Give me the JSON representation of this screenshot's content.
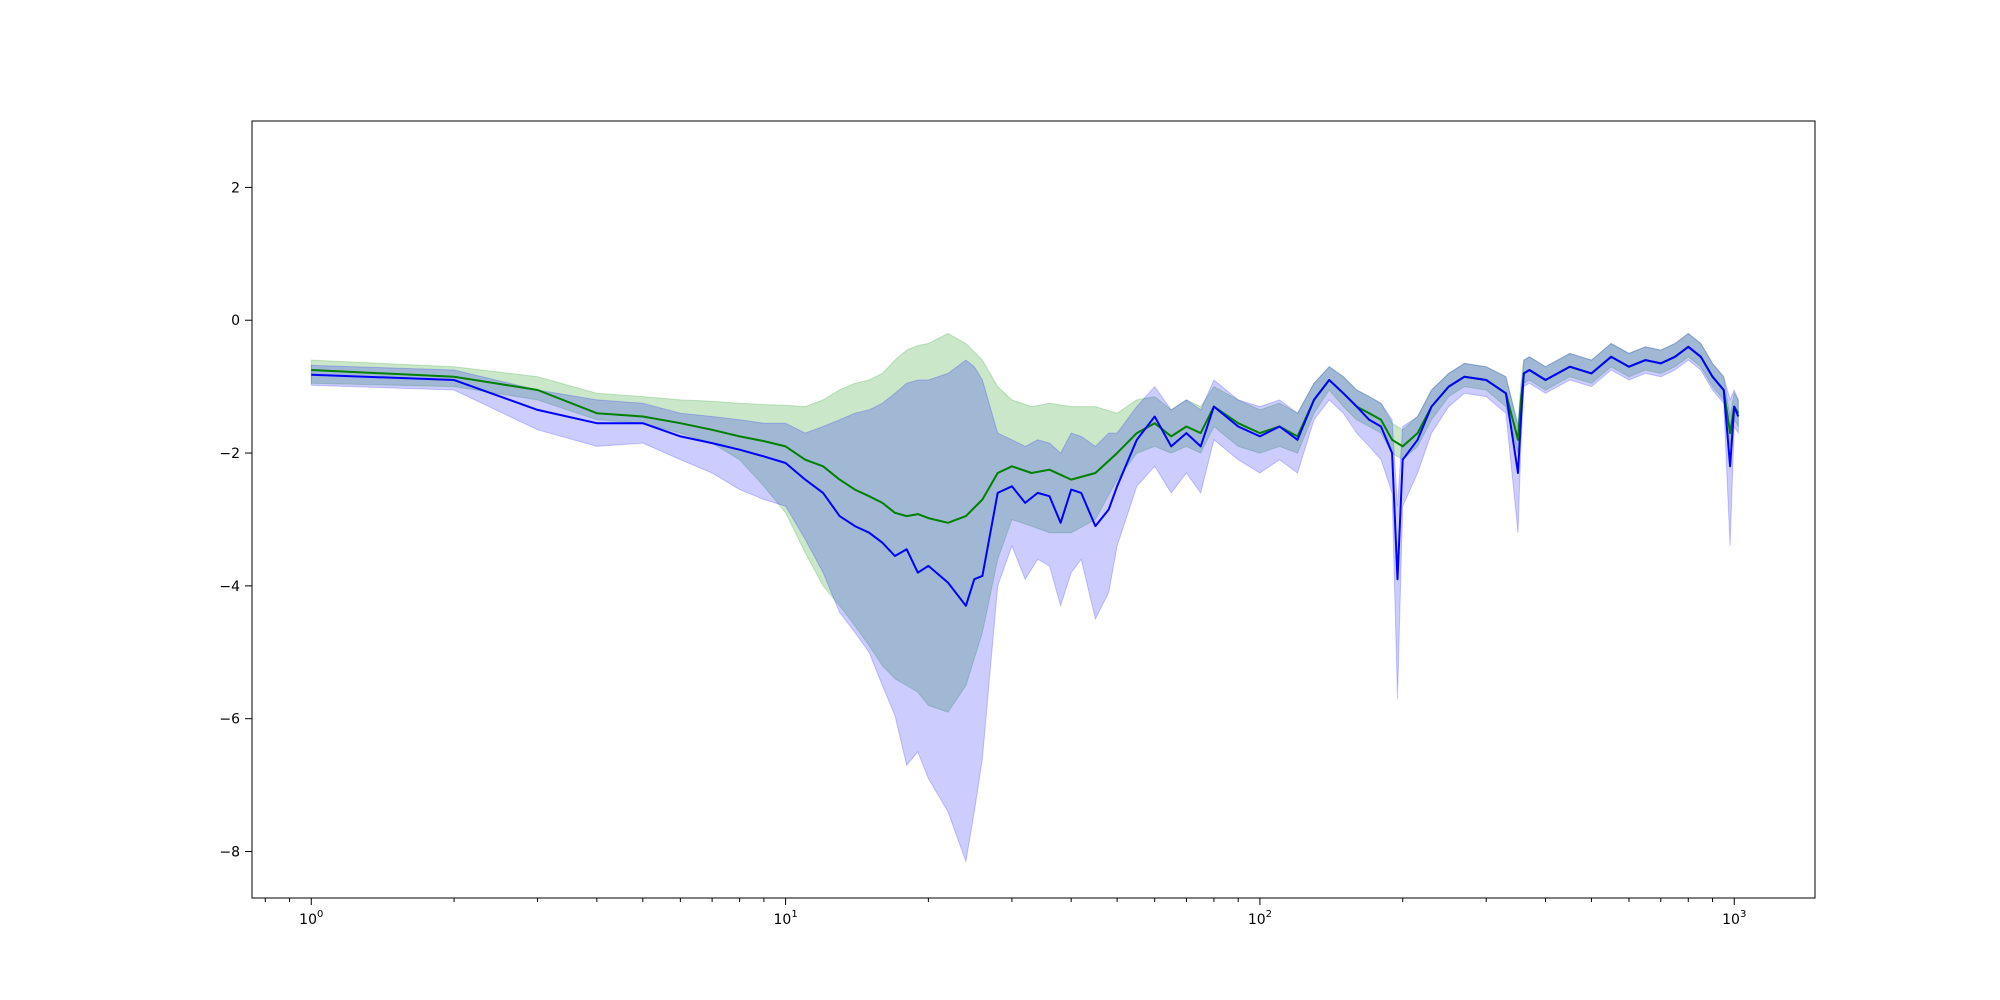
{
  "chart_data": {
    "type": "line",
    "x_scale": "log",
    "xlim": [
      0.75,
      1480
    ],
    "ylim": [
      -8.7,
      3.0
    ],
    "x_ticks": [
      1,
      10,
      100,
      1000
    ],
    "x_tick_labels": [
      {
        "base": "10",
        "exp": "0"
      },
      {
        "base": "10",
        "exp": "1"
      },
      {
        "base": "10",
        "exp": "2"
      },
      {
        "base": "10",
        "exp": "3"
      }
    ],
    "y_ticks": [
      2,
      0,
      -2,
      -4,
      -6,
      -8
    ],
    "y_tick_labels": [
      "2",
      "0",
      "−2",
      "−4",
      "−6",
      "−8"
    ],
    "grid": false,
    "legend": "none",
    "series": [
      {
        "color": "#008000",
        "band_color": "#2ca02c",
        "band_opacity": 0.25,
        "x": [
          1,
          2,
          3,
          4,
          5,
          6,
          7,
          8,
          9,
          10,
          11,
          12,
          13,
          14,
          15,
          16,
          17,
          18,
          19,
          20,
          22,
          24,
          26,
          28,
          30,
          33,
          36,
          40,
          45,
          50,
          55,
          60,
          65,
          70,
          75,
          80,
          90,
          100,
          110,
          120,
          130,
          140,
          150,
          160,
          170,
          180,
          190,
          200,
          215,
          230,
          250,
          270,
          300,
          330,
          350,
          355,
          360,
          370,
          400,
          450,
          500,
          550,
          600,
          650,
          700,
          750,
          800,
          850,
          900,
          950,
          980,
          1000,
          1020
        ],
        "y": [
          -0.75,
          -0.85,
          -1.05,
          -1.4,
          -1.45,
          -1.55,
          -1.65,
          -1.75,
          -1.82,
          -1.9,
          -2.1,
          -2.2,
          -2.4,
          -2.55,
          -2.65,
          -2.75,
          -2.9,
          -2.95,
          -2.92,
          -2.98,
          -3.05,
          -2.95,
          -2.7,
          -2.3,
          -2.2,
          -2.3,
          -2.25,
          -2.4,
          -2.3,
          -2.0,
          -1.7,
          -1.55,
          -1.75,
          -1.6,
          -1.7,
          -1.3,
          -1.55,
          -1.7,
          -1.6,
          -1.75,
          -1.2,
          -0.9,
          -1.1,
          -1.3,
          -1.4,
          -1.5,
          -1.8,
          -1.9,
          -1.7,
          -1.3,
          -1.0,
          -0.85,
          -0.9,
          -1.1,
          -1.8,
          -1.2,
          -0.8,
          -0.75,
          -0.9,
          -0.7,
          -0.8,
          -0.55,
          -0.7,
          -0.6,
          -0.65,
          -0.55,
          -0.4,
          -0.55,
          -0.85,
          -1.05,
          -1.7,
          -1.3,
          -1.4
        ],
        "lower": [
          -0.95,
          -1.0,
          -1.2,
          -1.5,
          -1.55,
          -1.7,
          -1.85,
          -2.1,
          -2.5,
          -2.9,
          -3.5,
          -4.0,
          -4.3,
          -4.6,
          -4.9,
          -5.2,
          -5.4,
          -5.5,
          -5.6,
          -5.8,
          -5.9,
          -5.5,
          -4.7,
          -3.6,
          -3.0,
          -3.1,
          -3.2,
          -3.2,
          -3.0,
          -2.4,
          -2.0,
          -1.9,
          -2.0,
          -1.9,
          -2.0,
          -1.6,
          -1.9,
          -2.0,
          -1.9,
          -2.0,
          -1.4,
          -1.05,
          -1.3,
          -1.5,
          -1.6,
          -1.7,
          -2.0,
          -2.1,
          -1.9,
          -1.5,
          -1.15,
          -1.0,
          -1.05,
          -1.3,
          -2.0,
          -1.4,
          -0.95,
          -0.9,
          -1.05,
          -0.85,
          -0.95,
          -0.7,
          -0.85,
          -0.75,
          -0.8,
          -0.7,
          -0.55,
          -0.7,
          -1.0,
          -1.2,
          -1.9,
          -1.5,
          -1.6
        ],
        "upper": [
          -0.6,
          -0.7,
          -0.85,
          -1.1,
          -1.15,
          -1.2,
          -1.22,
          -1.25,
          -1.27,
          -1.28,
          -1.3,
          -1.2,
          -1.05,
          -0.95,
          -0.9,
          -0.8,
          -0.6,
          -0.45,
          -0.38,
          -0.35,
          -0.2,
          -0.35,
          -0.6,
          -1.0,
          -1.2,
          -1.3,
          -1.25,
          -1.3,
          -1.3,
          -1.4,
          -1.2,
          -1.15,
          -1.35,
          -1.2,
          -1.3,
          -1.0,
          -1.2,
          -1.35,
          -1.25,
          -1.4,
          -0.95,
          -0.7,
          -0.85,
          -1.05,
          -1.15,
          -1.25,
          -1.55,
          -1.65,
          -1.45,
          -1.05,
          -0.8,
          -0.65,
          -0.7,
          -0.85,
          -1.55,
          -0.95,
          -0.6,
          -0.55,
          -0.7,
          -0.5,
          -0.6,
          -0.35,
          -0.5,
          -0.4,
          -0.45,
          -0.35,
          -0.2,
          -0.35,
          -0.65,
          -0.85,
          -1.45,
          -1.1,
          -1.2
        ]
      },
      {
        "color": "#0000ff",
        "band_color": "#0000ff",
        "band_opacity": 0.2,
        "x": [
          1,
          2,
          3,
          4,
          5,
          6,
          7,
          8,
          9,
          10,
          11,
          12,
          13,
          14,
          15,
          16,
          17,
          18,
          19,
          20,
          22,
          24,
          25,
          26,
          28,
          30,
          32,
          34,
          36,
          38,
          40,
          42,
          45,
          48,
          50,
          55,
          60,
          65,
          70,
          75,
          80,
          90,
          100,
          110,
          120,
          130,
          140,
          150,
          160,
          170,
          180,
          190,
          195,
          200,
          215,
          230,
          250,
          270,
          300,
          330,
          350,
          355,
          360,
          370,
          400,
          450,
          500,
          550,
          600,
          650,
          700,
          750,
          800,
          850,
          900,
          950,
          980,
          1000,
          1020
        ],
        "y": [
          -0.82,
          -0.9,
          -1.35,
          -1.55,
          -1.55,
          -1.75,
          -1.85,
          -1.95,
          -2.05,
          -2.15,
          -2.4,
          -2.6,
          -2.95,
          -3.1,
          -3.2,
          -3.35,
          -3.55,
          -3.45,
          -3.8,
          -3.7,
          -3.95,
          -4.3,
          -3.9,
          -3.85,
          -2.6,
          -2.5,
          -2.75,
          -2.6,
          -2.65,
          -3.05,
          -2.55,
          -2.6,
          -3.1,
          -2.85,
          -2.5,
          -1.8,
          -1.45,
          -1.9,
          -1.7,
          -1.9,
          -1.3,
          -1.6,
          -1.75,
          -1.6,
          -1.8,
          -1.2,
          -0.9,
          -1.1,
          -1.3,
          -1.5,
          -1.6,
          -2.0,
          -3.9,
          -2.1,
          -1.8,
          -1.3,
          -1.0,
          -0.85,
          -0.9,
          -1.1,
          -2.3,
          -1.5,
          -0.8,
          -0.75,
          -0.9,
          -0.7,
          -0.8,
          -0.55,
          -0.7,
          -0.6,
          -0.65,
          -0.55,
          -0.4,
          -0.55,
          -0.85,
          -1.05,
          -2.2,
          -1.3,
          -1.45
        ],
        "lower": [
          -0.98,
          -1.05,
          -1.65,
          -1.9,
          -1.85,
          -2.1,
          -2.3,
          -2.55,
          -2.7,
          -2.8,
          -3.3,
          -3.8,
          -4.4,
          -4.7,
          -5.0,
          -5.5,
          -5.95,
          -6.7,
          -6.5,
          -6.9,
          -7.4,
          -8.15,
          -7.4,
          -6.6,
          -4.0,
          -3.4,
          -3.9,
          -3.6,
          -3.7,
          -4.3,
          -3.8,
          -3.6,
          -4.5,
          -4.1,
          -3.4,
          -2.5,
          -2.2,
          -2.6,
          -2.3,
          -2.6,
          -1.8,
          -2.1,
          -2.3,
          -2.1,
          -2.3,
          -1.5,
          -1.2,
          -1.4,
          -1.7,
          -1.9,
          -2.1,
          -2.6,
          -5.7,
          -2.8,
          -2.3,
          -1.7,
          -1.3,
          -1.1,
          -1.15,
          -1.4,
          -3.2,
          -1.9,
          -1.0,
          -0.95,
          -1.1,
          -0.9,
          -1.0,
          -0.75,
          -0.9,
          -0.8,
          -0.85,
          -0.75,
          -0.6,
          -0.75,
          -1.05,
          -1.25,
          -3.4,
          -1.6,
          -1.7
        ],
        "upper": [
          -0.68,
          -0.75,
          -1.05,
          -1.2,
          -1.25,
          -1.4,
          -1.45,
          -1.5,
          -1.55,
          -1.55,
          -1.7,
          -1.6,
          -1.5,
          -1.4,
          -1.35,
          -1.25,
          -1.1,
          -0.95,
          -0.9,
          -0.9,
          -0.8,
          -0.6,
          -0.7,
          -0.9,
          -1.7,
          -1.8,
          -1.9,
          -1.8,
          -1.85,
          -2.0,
          -1.7,
          -1.75,
          -1.9,
          -1.7,
          -1.7,
          -1.3,
          -1.0,
          -1.35,
          -1.2,
          -1.35,
          -0.9,
          -1.2,
          -1.3,
          -1.2,
          -1.4,
          -0.95,
          -0.7,
          -0.85,
          -1.05,
          -1.15,
          -1.25,
          -1.5,
          -2.8,
          -1.6,
          -1.45,
          -1.05,
          -0.8,
          -0.65,
          -0.7,
          -0.85,
          -1.6,
          -1.2,
          -0.6,
          -0.55,
          -0.7,
          -0.5,
          -0.6,
          -0.35,
          -0.5,
          -0.4,
          -0.45,
          -0.35,
          -0.2,
          -0.35,
          -0.65,
          -0.85,
          -1.2,
          -1.05,
          -1.2
        ]
      }
    ]
  }
}
